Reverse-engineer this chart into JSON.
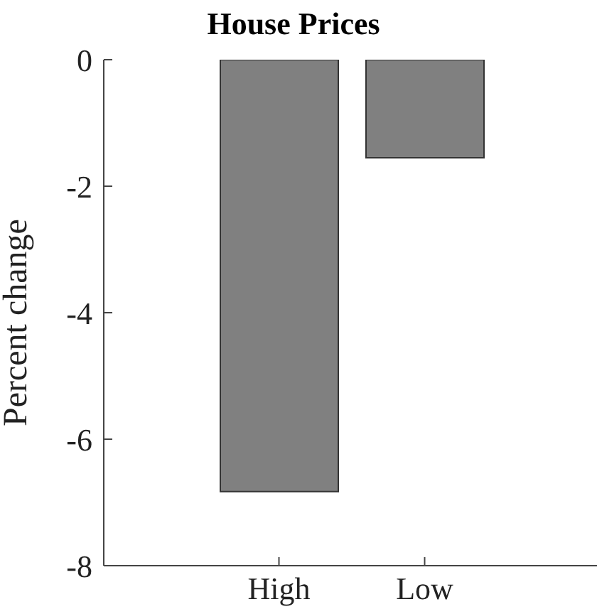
{
  "chart_data": {
    "type": "bar",
    "title": "House Prices",
    "ylabel": "Percent change",
    "categories": [
      "High",
      "Low"
    ],
    "values": [
      -6.83,
      -1.55
    ],
    "color": "#808080",
    "ylim": [
      -8,
      0
    ],
    "yticks": [
      -8,
      -6,
      -4,
      -2,
      0
    ],
    "grid": false,
    "legend": false
  }
}
